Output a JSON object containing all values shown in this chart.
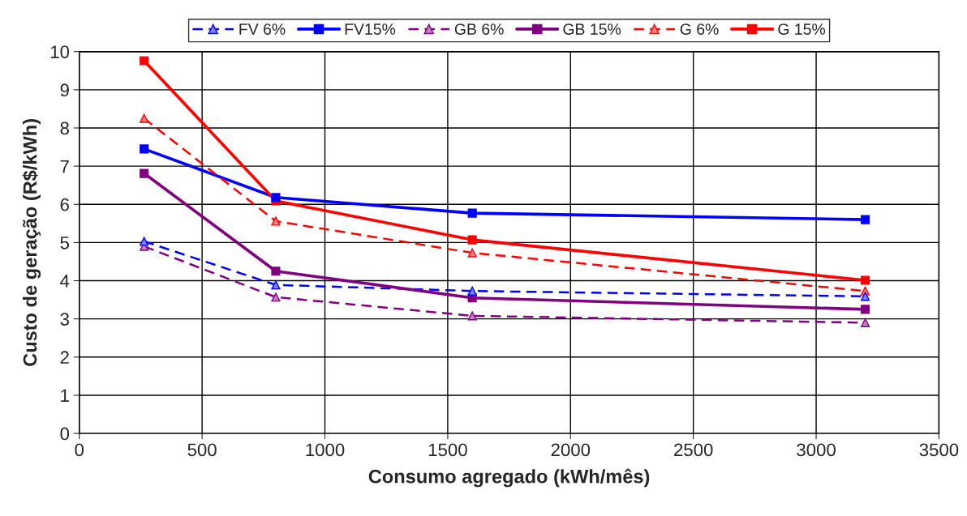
{
  "chart_data": {
    "type": "line",
    "xlabel": "Consumo agregado (kWh/mês)",
    "ylabel": "Custo de geração (R$/kWh)",
    "x": [
      264,
      800,
      1600,
      3200
    ],
    "xlim": [
      0,
      3500
    ],
    "xticks": [
      0,
      500,
      1000,
      1500,
      2000,
      2500,
      3000,
      3500
    ],
    "ylim": [
      0,
      10
    ],
    "yticks": [
      0,
      1,
      2,
      3,
      4,
      5,
      6,
      7,
      8,
      9,
      10
    ],
    "grid": true,
    "legend": "top",
    "series": [
      {
        "name": "FV 6%",
        "color": "#0000ff",
        "values": [
          5.03,
          3.89,
          3.73,
          3.59
        ],
        "marker": "triangle",
        "line_style": "dashed"
      },
      {
        "name": "FV15%",
        "color": "#0000ff",
        "values": [
          7.45,
          6.18,
          5.77,
          5.6
        ],
        "marker": "square",
        "line_style": "solid"
      },
      {
        "name": "GB 6%",
        "color": "#800080",
        "values": [
          4.9,
          3.57,
          3.08,
          2.9
        ],
        "marker": "triangle",
        "line_style": "dashed"
      },
      {
        "name": "GB 15%",
        "color": "#800080",
        "values": [
          6.81,
          4.25,
          3.55,
          3.25
        ],
        "marker": "square",
        "line_style": "solid"
      },
      {
        "name": "G 6%",
        "color": "#ff0000",
        "values": [
          8.25,
          5.56,
          4.73,
          3.73
        ],
        "marker": "triangle",
        "line_style": "dashed"
      },
      {
        "name": "G 15%",
        "color": "#ff0000",
        "values": [
          9.76,
          6.09,
          5.07,
          4.01
        ],
        "marker": "square",
        "line_style": "solid"
      }
    ]
  }
}
